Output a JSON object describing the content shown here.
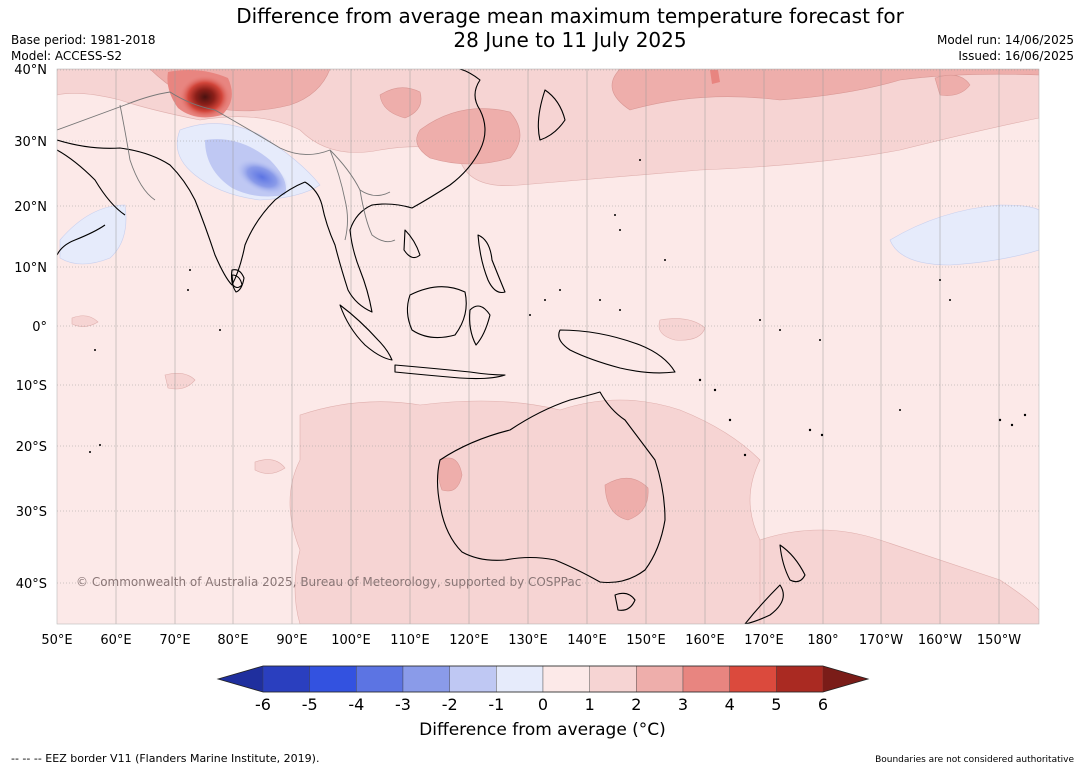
{
  "title": {
    "line1": "Difference from average mean maximum temperature forecast for",
    "line2": "28 June to 11 July 2025"
  },
  "meta": {
    "base_period": "Base period: 1981-2018",
    "model": "Model: ACCESS-S2",
    "model_run": "Model run: 14/06/2025",
    "issued": "Issued: 16/06/2025"
  },
  "map": {
    "lat_labels": [
      "40°N",
      "30°N",
      "20°N",
      "10°N",
      "0°",
      "10°S",
      "20°S",
      "30°S",
      "40°S"
    ],
    "lon_labels": [
      "50°E",
      "60°E",
      "70°E",
      "80°E",
      "90°E",
      "100°E",
      "110°E",
      "120°E",
      "130°E",
      "140°E",
      "150°E",
      "160°E",
      "170°E",
      "180°",
      "170°W",
      "160°W",
      "150°W"
    ],
    "copyright": "© Commonwealth of Australia 2025, Bureau of Meteorology, supported by COSPPac",
    "ocean_fill": "#fce9e8"
  },
  "colorbar": {
    "tick_labels": [
      "-6",
      "-5",
      "-4",
      "-3",
      "-2",
      "-1",
      "0",
      "1",
      "2",
      "3",
      "4",
      "5",
      "6"
    ],
    "colors": [
      "#1f2f9e",
      "#2a3fbf",
      "#3352e0",
      "#5c74e3",
      "#8a9be9",
      "#bfc8f3",
      "#e6ebfb",
      "#fce9e8",
      "#f6d4d3",
      "#eeaeab",
      "#e88580",
      "#db4a3d",
      "#aa2a22",
      "#7a1c18"
    ],
    "label": "Difference from average (°C)"
  },
  "footer": {
    "eez_legend": "--  --  -- EEZ border V11 (Flanders Marine Institute, 2019).",
    "boundaries_note": "Boundaries are not considered authoritative"
  }
}
